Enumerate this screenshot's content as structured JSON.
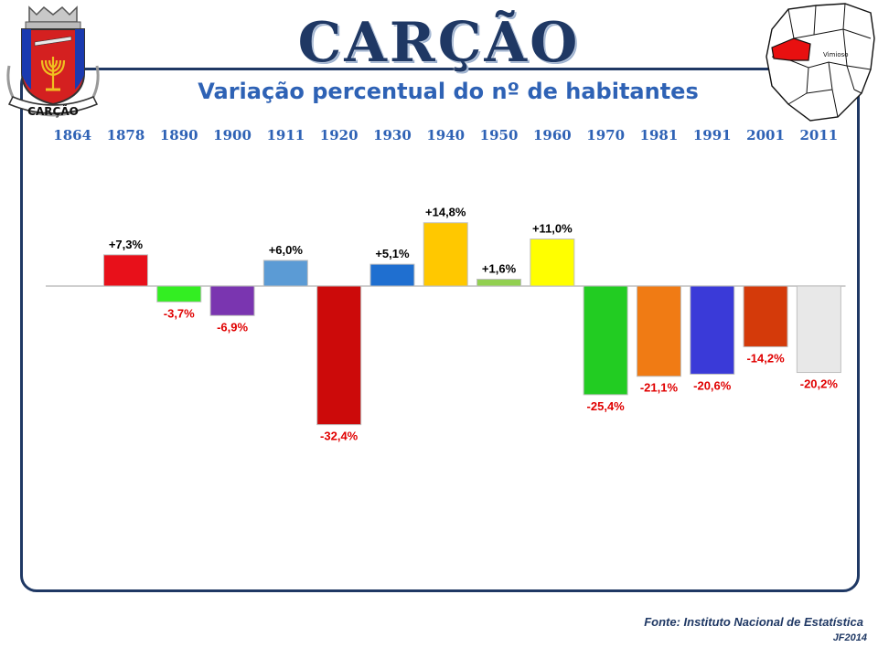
{
  "header": {
    "title": "CARÇÃO",
    "subtitle": "Variação percentual do nº de habitantes",
    "crest_label": "CARÇÃO",
    "map_label": "Vimioso"
  },
  "footer": {
    "source": "Fonte: Instituto Nacional de Estatística",
    "author": "JF2014"
  },
  "chart_data": {
    "type": "bar",
    "categories": [
      "1864",
      "1878",
      "1890",
      "1900",
      "1911",
      "1920",
      "1930",
      "1940",
      "1950",
      "1960",
      "1970",
      "1981",
      "1991",
      "2001",
      "2011"
    ],
    "values": [
      null,
      7.3,
      -3.7,
      -6.9,
      6.0,
      -32.4,
      5.1,
      14.8,
      1.6,
      11.0,
      -25.4,
      -21.1,
      -20.6,
      -14.2,
      -20.2
    ],
    "labels": [
      "",
      "+7,3%",
      "-3,7%",
      "-6,9%",
      "+6,0%",
      "-32,4%",
      "+5,1%",
      "+14,8%",
      "+1,6%",
      "+11,0%",
      "-25,4%",
      "-21,1%",
      "-20,6%",
      "-14,2%",
      "-20,2%"
    ],
    "colors": [
      "#ffffff",
      "#e8101a",
      "#33ee22",
      "#7a35b0",
      "#5b9bd5",
      "#cc0a0a",
      "#1f6fd0",
      "#ffc800",
      "#92d050",
      "#ffff00",
      "#22cc22",
      "#f07b14",
      "#3a3ad8",
      "#d43a0a",
      "#e8e8e8"
    ],
    "positive_label_color": "#000000",
    "negative_label_color": "#e00000",
    "ylim": [
      -35,
      20
    ],
    "grid": false,
    "title": "Variação percentual do nº de habitantes"
  }
}
